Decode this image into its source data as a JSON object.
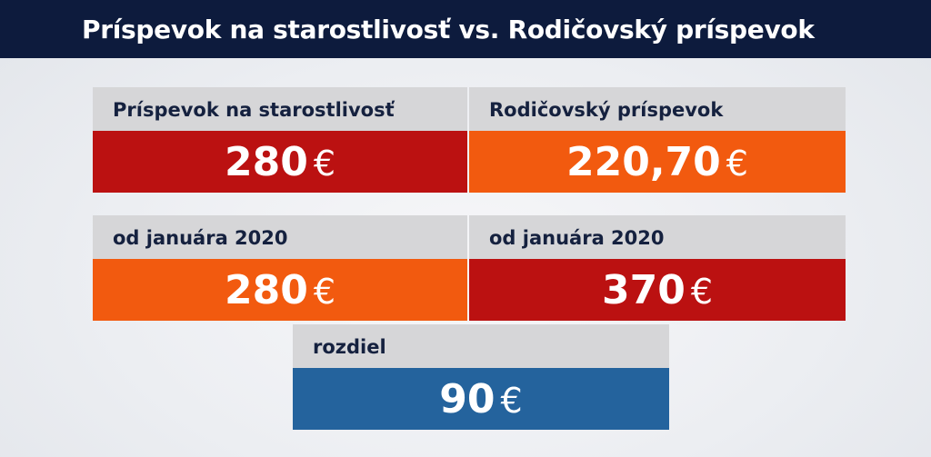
{
  "header": {
    "title": "Príspevok na starostlivosť vs. Rodičovský príspevok"
  },
  "cards": [
    {
      "label": "Príspevok na starostlivosť",
      "amount": "280",
      "currency": "€",
      "color": "#bb1111"
    },
    {
      "label": "Rodičovský príspevok",
      "amount": "220,70",
      "currency": "€",
      "color": "#f25a0f"
    },
    {
      "label": "od januára 2020",
      "amount": "280",
      "currency": "€",
      "color": "#f25a0f"
    },
    {
      "label": "od januára 2020",
      "amount": "370",
      "currency": "€",
      "color": "#bb1111"
    },
    {
      "label": "rozdiel",
      "amount": "90",
      "currency": "€",
      "color": "#24639d"
    }
  ]
}
